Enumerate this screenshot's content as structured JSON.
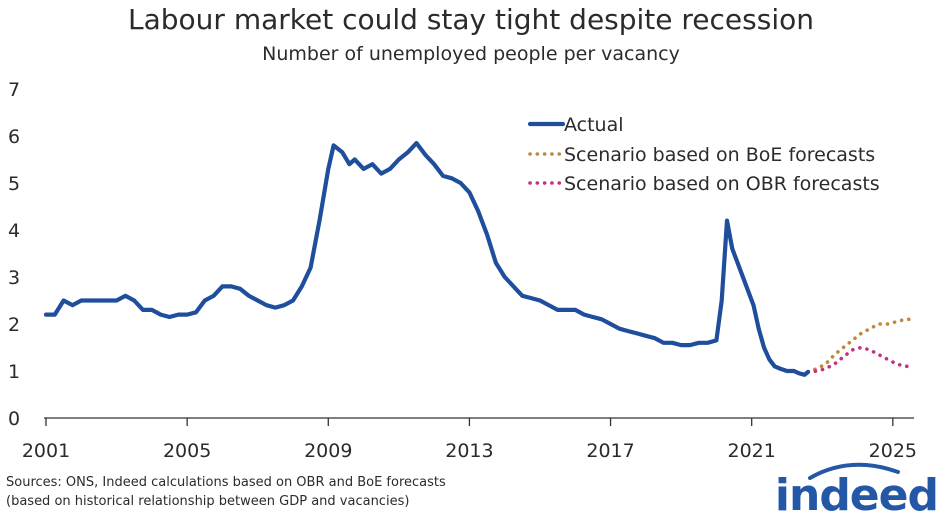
{
  "chart_data": {
    "type": "line",
    "title": "Labour market could stay tight despite recession",
    "subtitle": "Number of unemployed people per vacancy",
    "xlabel": "",
    "ylabel": "",
    "xlim": [
      2001,
      2025.6
    ],
    "ylim": [
      0,
      7
    ],
    "x_ticks": [
      2001,
      2005,
      2009,
      2013,
      2017,
      2021,
      2025
    ],
    "y_ticks": [
      0,
      1,
      2,
      3,
      4,
      5,
      6,
      7
    ],
    "legend_position": "top-right",
    "series": [
      {
        "name": "Actual",
        "style": "solid",
        "color": "#1f4e9c",
        "points": [
          [
            2001.0,
            2.2
          ],
          [
            2001.25,
            2.2
          ],
          [
            2001.5,
            2.5
          ],
          [
            2001.75,
            2.4
          ],
          [
            2002.0,
            2.5
          ],
          [
            2002.25,
            2.5
          ],
          [
            2002.5,
            2.5
          ],
          [
            2002.75,
            2.5
          ],
          [
            2003.0,
            2.5
          ],
          [
            2003.25,
            2.6
          ],
          [
            2003.5,
            2.5
          ],
          [
            2003.75,
            2.3
          ],
          [
            2004.0,
            2.3
          ],
          [
            2004.25,
            2.2
          ],
          [
            2004.5,
            2.15
          ],
          [
            2004.75,
            2.2
          ],
          [
            2005.0,
            2.2
          ],
          [
            2005.25,
            2.25
          ],
          [
            2005.5,
            2.5
          ],
          [
            2005.75,
            2.6
          ],
          [
            2006.0,
            2.8
          ],
          [
            2006.25,
            2.8
          ],
          [
            2006.5,
            2.75
          ],
          [
            2006.75,
            2.6
          ],
          [
            2007.0,
            2.5
          ],
          [
            2007.25,
            2.4
          ],
          [
            2007.5,
            2.35
          ],
          [
            2007.75,
            2.4
          ],
          [
            2008.0,
            2.5
          ],
          [
            2008.25,
            2.8
          ],
          [
            2008.5,
            3.2
          ],
          [
            2008.75,
            4.2
          ],
          [
            2009.0,
            5.3
          ],
          [
            2009.15,
            5.8
          ],
          [
            2009.4,
            5.65
          ],
          [
            2009.6,
            5.4
          ],
          [
            2009.75,
            5.5
          ],
          [
            2010.0,
            5.3
          ],
          [
            2010.25,
            5.4
          ],
          [
            2010.5,
            5.2
          ],
          [
            2010.75,
            5.3
          ],
          [
            2011.0,
            5.5
          ],
          [
            2011.25,
            5.65
          ],
          [
            2011.5,
            5.85
          ],
          [
            2011.75,
            5.6
          ],
          [
            2012.0,
            5.4
          ],
          [
            2012.25,
            5.15
          ],
          [
            2012.5,
            5.1
          ],
          [
            2012.75,
            5.0
          ],
          [
            2013.0,
            4.8
          ],
          [
            2013.25,
            4.4
          ],
          [
            2013.5,
            3.9
          ],
          [
            2013.75,
            3.3
          ],
          [
            2014.0,
            3.0
          ],
          [
            2014.25,
            2.8
          ],
          [
            2014.5,
            2.6
          ],
          [
            2014.75,
            2.55
          ],
          [
            2015.0,
            2.5
          ],
          [
            2015.25,
            2.4
          ],
          [
            2015.5,
            2.3
          ],
          [
            2015.75,
            2.3
          ],
          [
            2016.0,
            2.3
          ],
          [
            2016.25,
            2.2
          ],
          [
            2016.5,
            2.15
          ],
          [
            2016.75,
            2.1
          ],
          [
            2017.0,
            2.0
          ],
          [
            2017.25,
            1.9
          ],
          [
            2017.5,
            1.85
          ],
          [
            2017.75,
            1.8
          ],
          [
            2018.0,
            1.75
          ],
          [
            2018.25,
            1.7
          ],
          [
            2018.5,
            1.6
          ],
          [
            2018.75,
            1.6
          ],
          [
            2019.0,
            1.55
          ],
          [
            2019.25,
            1.55
          ],
          [
            2019.5,
            1.6
          ],
          [
            2019.75,
            1.6
          ],
          [
            2020.0,
            1.65
          ],
          [
            2020.15,
            2.5
          ],
          [
            2020.3,
            4.2
          ],
          [
            2020.45,
            3.6
          ],
          [
            2020.6,
            3.3
          ],
          [
            2020.75,
            3.0
          ],
          [
            2020.9,
            2.7
          ],
          [
            2021.05,
            2.4
          ],
          [
            2021.2,
            1.9
          ],
          [
            2021.35,
            1.5
          ],
          [
            2021.5,
            1.25
          ],
          [
            2021.65,
            1.1
          ],
          [
            2021.8,
            1.05
          ],
          [
            2022.0,
            1.0
          ],
          [
            2022.2,
            1.0
          ],
          [
            2022.35,
            0.95
          ],
          [
            2022.5,
            0.92
          ],
          [
            2022.6,
            0.98
          ]
        ]
      },
      {
        "name": "Scenario based on BoE forecasts",
        "style": "dotted",
        "color": "#c0883c",
        "points": [
          [
            2022.6,
            0.98
          ],
          [
            2022.85,
            1.05
          ],
          [
            2023.1,
            1.15
          ],
          [
            2023.35,
            1.35
          ],
          [
            2023.6,
            1.5
          ],
          [
            2023.85,
            1.65
          ],
          [
            2024.1,
            1.8
          ],
          [
            2024.35,
            1.9
          ],
          [
            2024.6,
            2.0
          ],
          [
            2024.85,
            2.0
          ],
          [
            2025.1,
            2.05
          ],
          [
            2025.35,
            2.1
          ],
          [
            2025.55,
            2.1
          ]
        ]
      },
      {
        "name": "Scenario based on OBR forecasts",
        "style": "dotted",
        "color": "#c2327f",
        "points": [
          [
            2022.6,
            0.98
          ],
          [
            2022.85,
            1.0
          ],
          [
            2023.1,
            1.05
          ],
          [
            2023.35,
            1.15
          ],
          [
            2023.6,
            1.3
          ],
          [
            2023.85,
            1.45
          ],
          [
            2024.1,
            1.5
          ],
          [
            2024.35,
            1.45
          ],
          [
            2024.6,
            1.35
          ],
          [
            2024.85,
            1.25
          ],
          [
            2025.1,
            1.15
          ],
          [
            2025.35,
            1.1
          ],
          [
            2025.55,
            1.1
          ]
        ]
      }
    ]
  },
  "footer": {
    "source_line1": "Sources: ONS, Indeed calculations based on OBR and BoE forecasts",
    "source_line2": "(based on historical relationship between GDP and vacancies)",
    "logo_text": "indeed"
  }
}
